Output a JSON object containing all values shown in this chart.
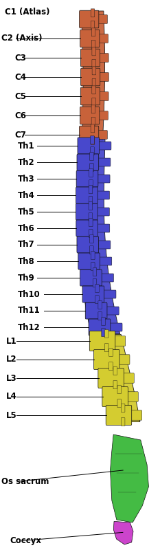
{
  "background_color": "#ffffff",
  "cervical_color": "#c8623a",
  "thoracic_color": "#4848cc",
  "lumbar_color": "#d4cc30",
  "sacrum_color": "#44bb44",
  "coccyx_color": "#cc44cc",
  "label_fontsize": 8.5,
  "label_fontweight": "bold",
  "cervical_labels": [
    "C1 (Atlas)",
    "C2 (Axis)",
    "C3",
    "C4",
    "C5",
    "C6",
    "C7"
  ],
  "thoracic_labels": [
    "Th1",
    "Th2",
    "Th3",
    "Th4",
    "Th5",
    "Th6",
    "Th7",
    "Th8",
    "Th9",
    "Th10",
    "Th11",
    "Th12"
  ],
  "lumbar_labels": [
    "L1",
    "L2",
    "L3",
    "L4",
    "L5"
  ],
  "sacrum_label": "Os sacrum",
  "coccyx_label": "Coccyx"
}
